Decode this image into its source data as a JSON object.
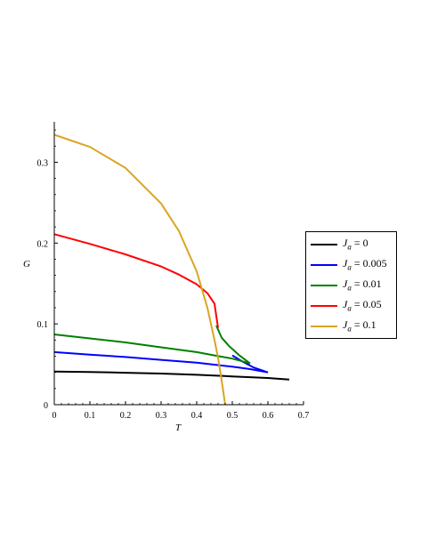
{
  "chart_data": {
    "type": "line",
    "xlabel": "T",
    "ylabel": "G",
    "xlim": [
      0,
      0.7
    ],
    "ylim": [
      0,
      0.35
    ],
    "xticks": [
      "0",
      "0.1",
      "0.2",
      "0.3",
      "0.4",
      "0.5",
      "0.6",
      "0.7"
    ],
    "yticks": [
      "0",
      "0.1",
      "0.2",
      "0.3"
    ],
    "legend_position": "right",
    "legend_var": "J",
    "legend_sub": "a",
    "series": [
      {
        "name": "= 0",
        "color": "#000000",
        "x": [
          0,
          0.1,
          0.2,
          0.3,
          0.4,
          0.5,
          0.6,
          0.66
        ],
        "y": [
          0.041,
          0.0405,
          0.0395,
          0.0385,
          0.037,
          0.035,
          0.033,
          0.031
        ]
      },
      {
        "name": "= 0.005",
        "color": "#0000ff",
        "x": [
          0,
          0.1,
          0.2,
          0.3,
          0.4,
          0.5,
          0.55,
          0.6
        ],
        "y": [
          0.065,
          0.062,
          0.059,
          0.0555,
          0.052,
          0.047,
          0.044,
          0.04
        ]
      },
      {
        "name": "= 0.01",
        "color": "#008000",
        "x": [
          0,
          0.1,
          0.2,
          0.3,
          0.4,
          0.45,
          0.5,
          0.55
        ],
        "y": [
          0.087,
          0.082,
          0.077,
          0.071,
          0.065,
          0.061,
          0.057,
          0.051
        ]
      },
      {
        "name": "= 0.05",
        "color": "#ff0000",
        "x": [
          0,
          0.1,
          0.2,
          0.3,
          0.35,
          0.4,
          0.43,
          0.45,
          0.455,
          0.46
        ],
        "y": [
          0.211,
          0.199,
          0.186,
          0.171,
          0.161,
          0.149,
          0.138,
          0.125,
          0.11,
          0.095
        ]
      },
      {
        "name": "= 0.1",
        "color": "#daa520",
        "x": [
          0,
          0.1,
          0.2,
          0.3,
          0.35,
          0.4,
          0.43,
          0.45,
          0.46,
          0.47,
          0.48
        ],
        "y": [
          0.334,
          0.319,
          0.293,
          0.249,
          0.215,
          0.165,
          0.12,
          0.08,
          0.058,
          0.03,
          0.0
        ]
      }
    ],
    "extra_lines": [
      {
        "color": "#008000",
        "x": [
          0.455,
          0.47,
          0.49,
          0.52,
          0.55
        ],
        "y": [
          0.098,
          0.083,
          0.073,
          0.061,
          0.051
        ]
      },
      {
        "color": "#0000ff",
        "x": [
          0.5,
          0.53,
          0.56,
          0.6
        ],
        "y": [
          0.061,
          0.053,
          0.046,
          0.04
        ]
      }
    ]
  }
}
